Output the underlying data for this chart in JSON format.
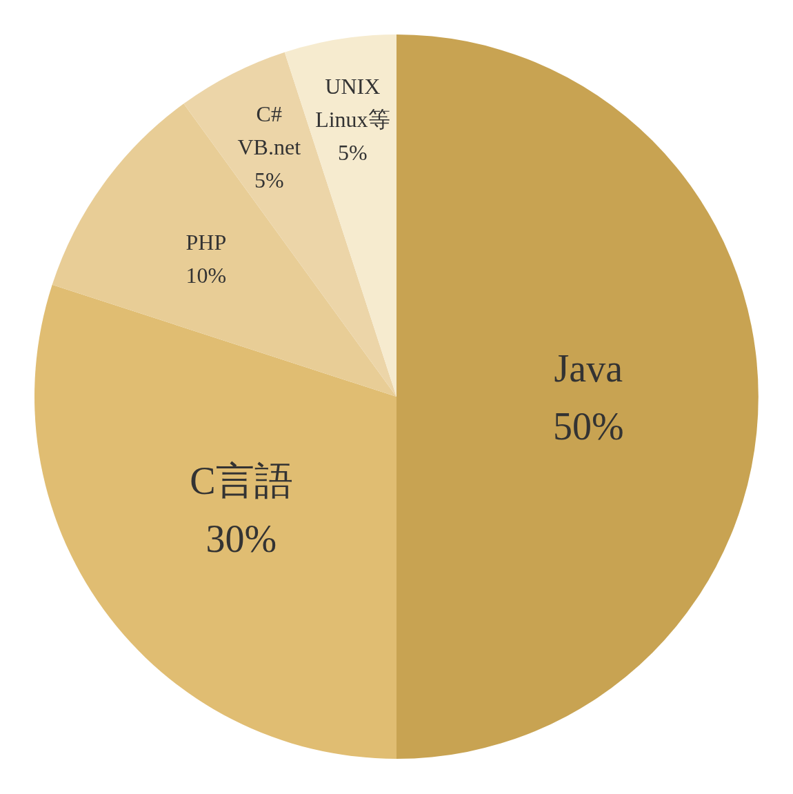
{
  "chart_data": {
    "type": "pie",
    "categories": [
      "Java",
      "C言語",
      "PHP",
      "C#\nVB.net",
      "UNIX\nLinux等"
    ],
    "values": [
      50,
      30,
      10,
      5,
      5
    ],
    "colors": [
      "#c8a352",
      "#e0bd72",
      "#e8cd96",
      "#ecd5a8",
      "#f6ebcf"
    ],
    "value_labels": [
      "50%",
      "30%",
      "10%",
      "5%",
      "5%"
    ]
  }
}
